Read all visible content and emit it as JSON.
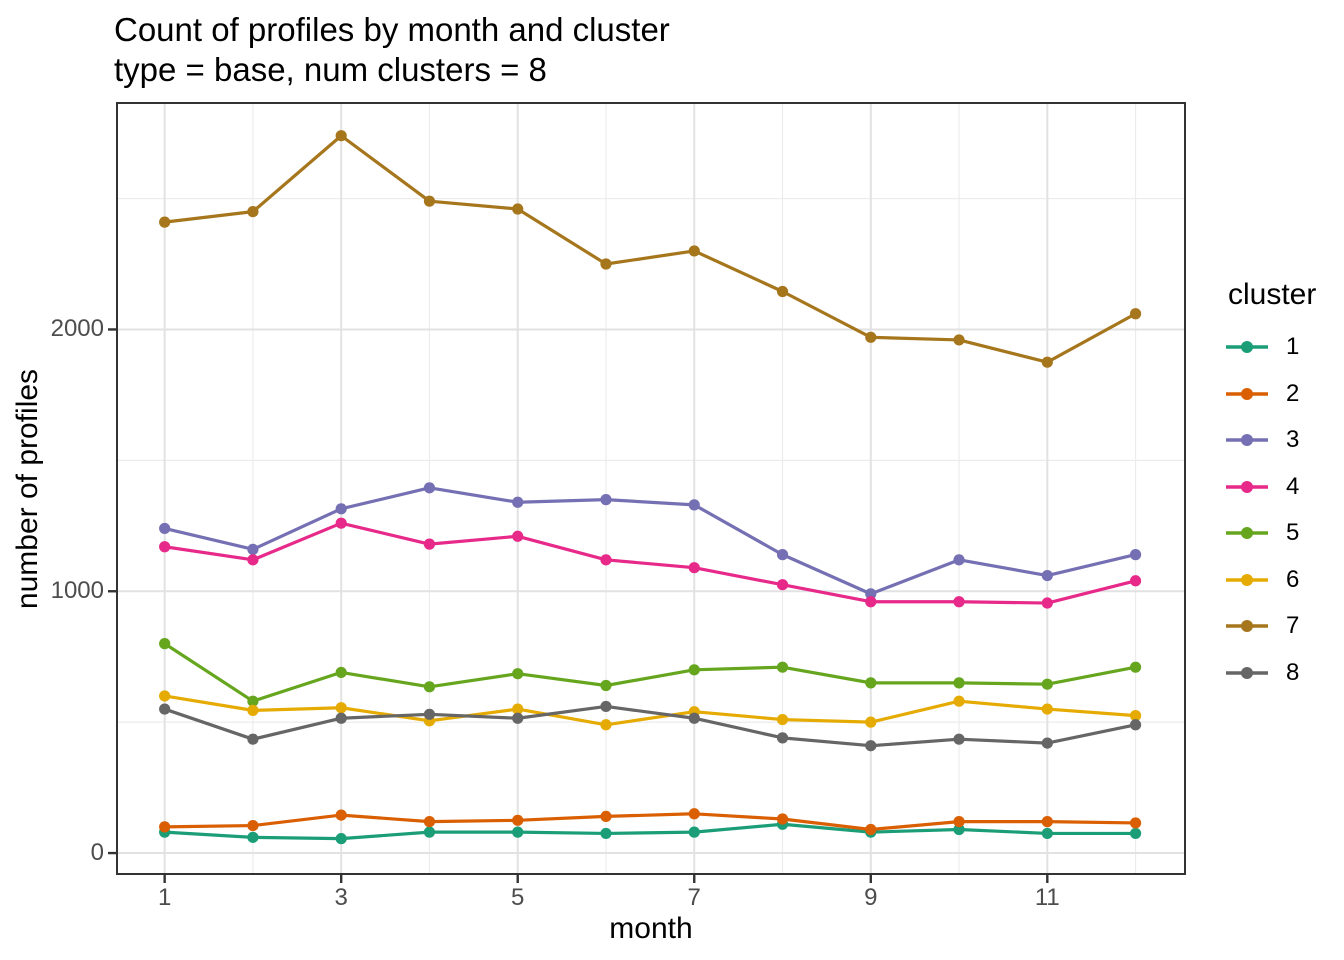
{
  "header": {
    "title": "Count of profiles by month and cluster",
    "subtitle": "type = base, num clusters = 8"
  },
  "chart_data": {
    "type": "line",
    "title": "Count of profiles by month and cluster",
    "subtitle": "type = base, num clusters = 8",
    "xlabel": "month",
    "ylabel": "number of profiles",
    "legend_title": "cluster",
    "legend_position": "right",
    "grid": true,
    "x": [
      1,
      2,
      3,
      4,
      5,
      6,
      7,
      8,
      9,
      10,
      11,
      12
    ],
    "x_major_ticks": [
      1,
      3,
      5,
      7,
      9,
      11
    ],
    "x_minor_gridlines": [
      2,
      4,
      6,
      8,
      10,
      12
    ],
    "y_major_ticks": [
      0,
      1000,
      2000
    ],
    "y_minor_gridlines": [
      500,
      1500,
      2500
    ],
    "xlim": [
      0.46,
      12.56
    ],
    "ylim": [
      -80,
      2865
    ],
    "series": [
      {
        "name": "1",
        "color": "#1B9E77",
        "values": [
          80,
          60,
          55,
          80,
          80,
          75,
          80,
          110,
          80,
          90,
          75,
          75
        ]
      },
      {
        "name": "2",
        "color": "#D95F02",
        "values": [
          100,
          105,
          145,
          120,
          125,
          140,
          150,
          130,
          90,
          120,
          120,
          115
        ]
      },
      {
        "name": "3",
        "color": "#7570B3",
        "values": [
          1240,
          1160,
          1315,
          1395,
          1340,
          1350,
          1330,
          1140,
          990,
          1120,
          1060,
          1140
        ]
      },
      {
        "name": "4",
        "color": "#E7298A",
        "values": [
          1170,
          1120,
          1260,
          1180,
          1210,
          1120,
          1090,
          1025,
          960,
          960,
          955,
          1040
        ]
      },
      {
        "name": "5",
        "color": "#66A61E",
        "values": [
          800,
          580,
          690,
          635,
          685,
          640,
          700,
          710,
          650,
          650,
          645,
          710
        ]
      },
      {
        "name": "6",
        "color": "#E6AB02",
        "values": [
          600,
          545,
          555,
          505,
          550,
          490,
          540,
          510,
          500,
          580,
          550,
          525
        ]
      },
      {
        "name": "7",
        "color": "#A6761D",
        "values": [
          2410,
          2450,
          2740,
          2490,
          2460,
          2250,
          2300,
          2145,
          1970,
          1960,
          1875,
          2060
        ]
      },
      {
        "name": "8",
        "color": "#666666",
        "values": [
          550,
          435,
          515,
          530,
          515,
          560,
          515,
          440,
          410,
          435,
          420,
          490
        ]
      }
    ]
  },
  "style_colors": {
    "panel_border": "#333333",
    "tick_mark": "#333333",
    "tick_label": "#4d4d4d",
    "grid_major": "#e2e2e2",
    "grid_minor": "#ececec",
    "text": "#000000"
  }
}
